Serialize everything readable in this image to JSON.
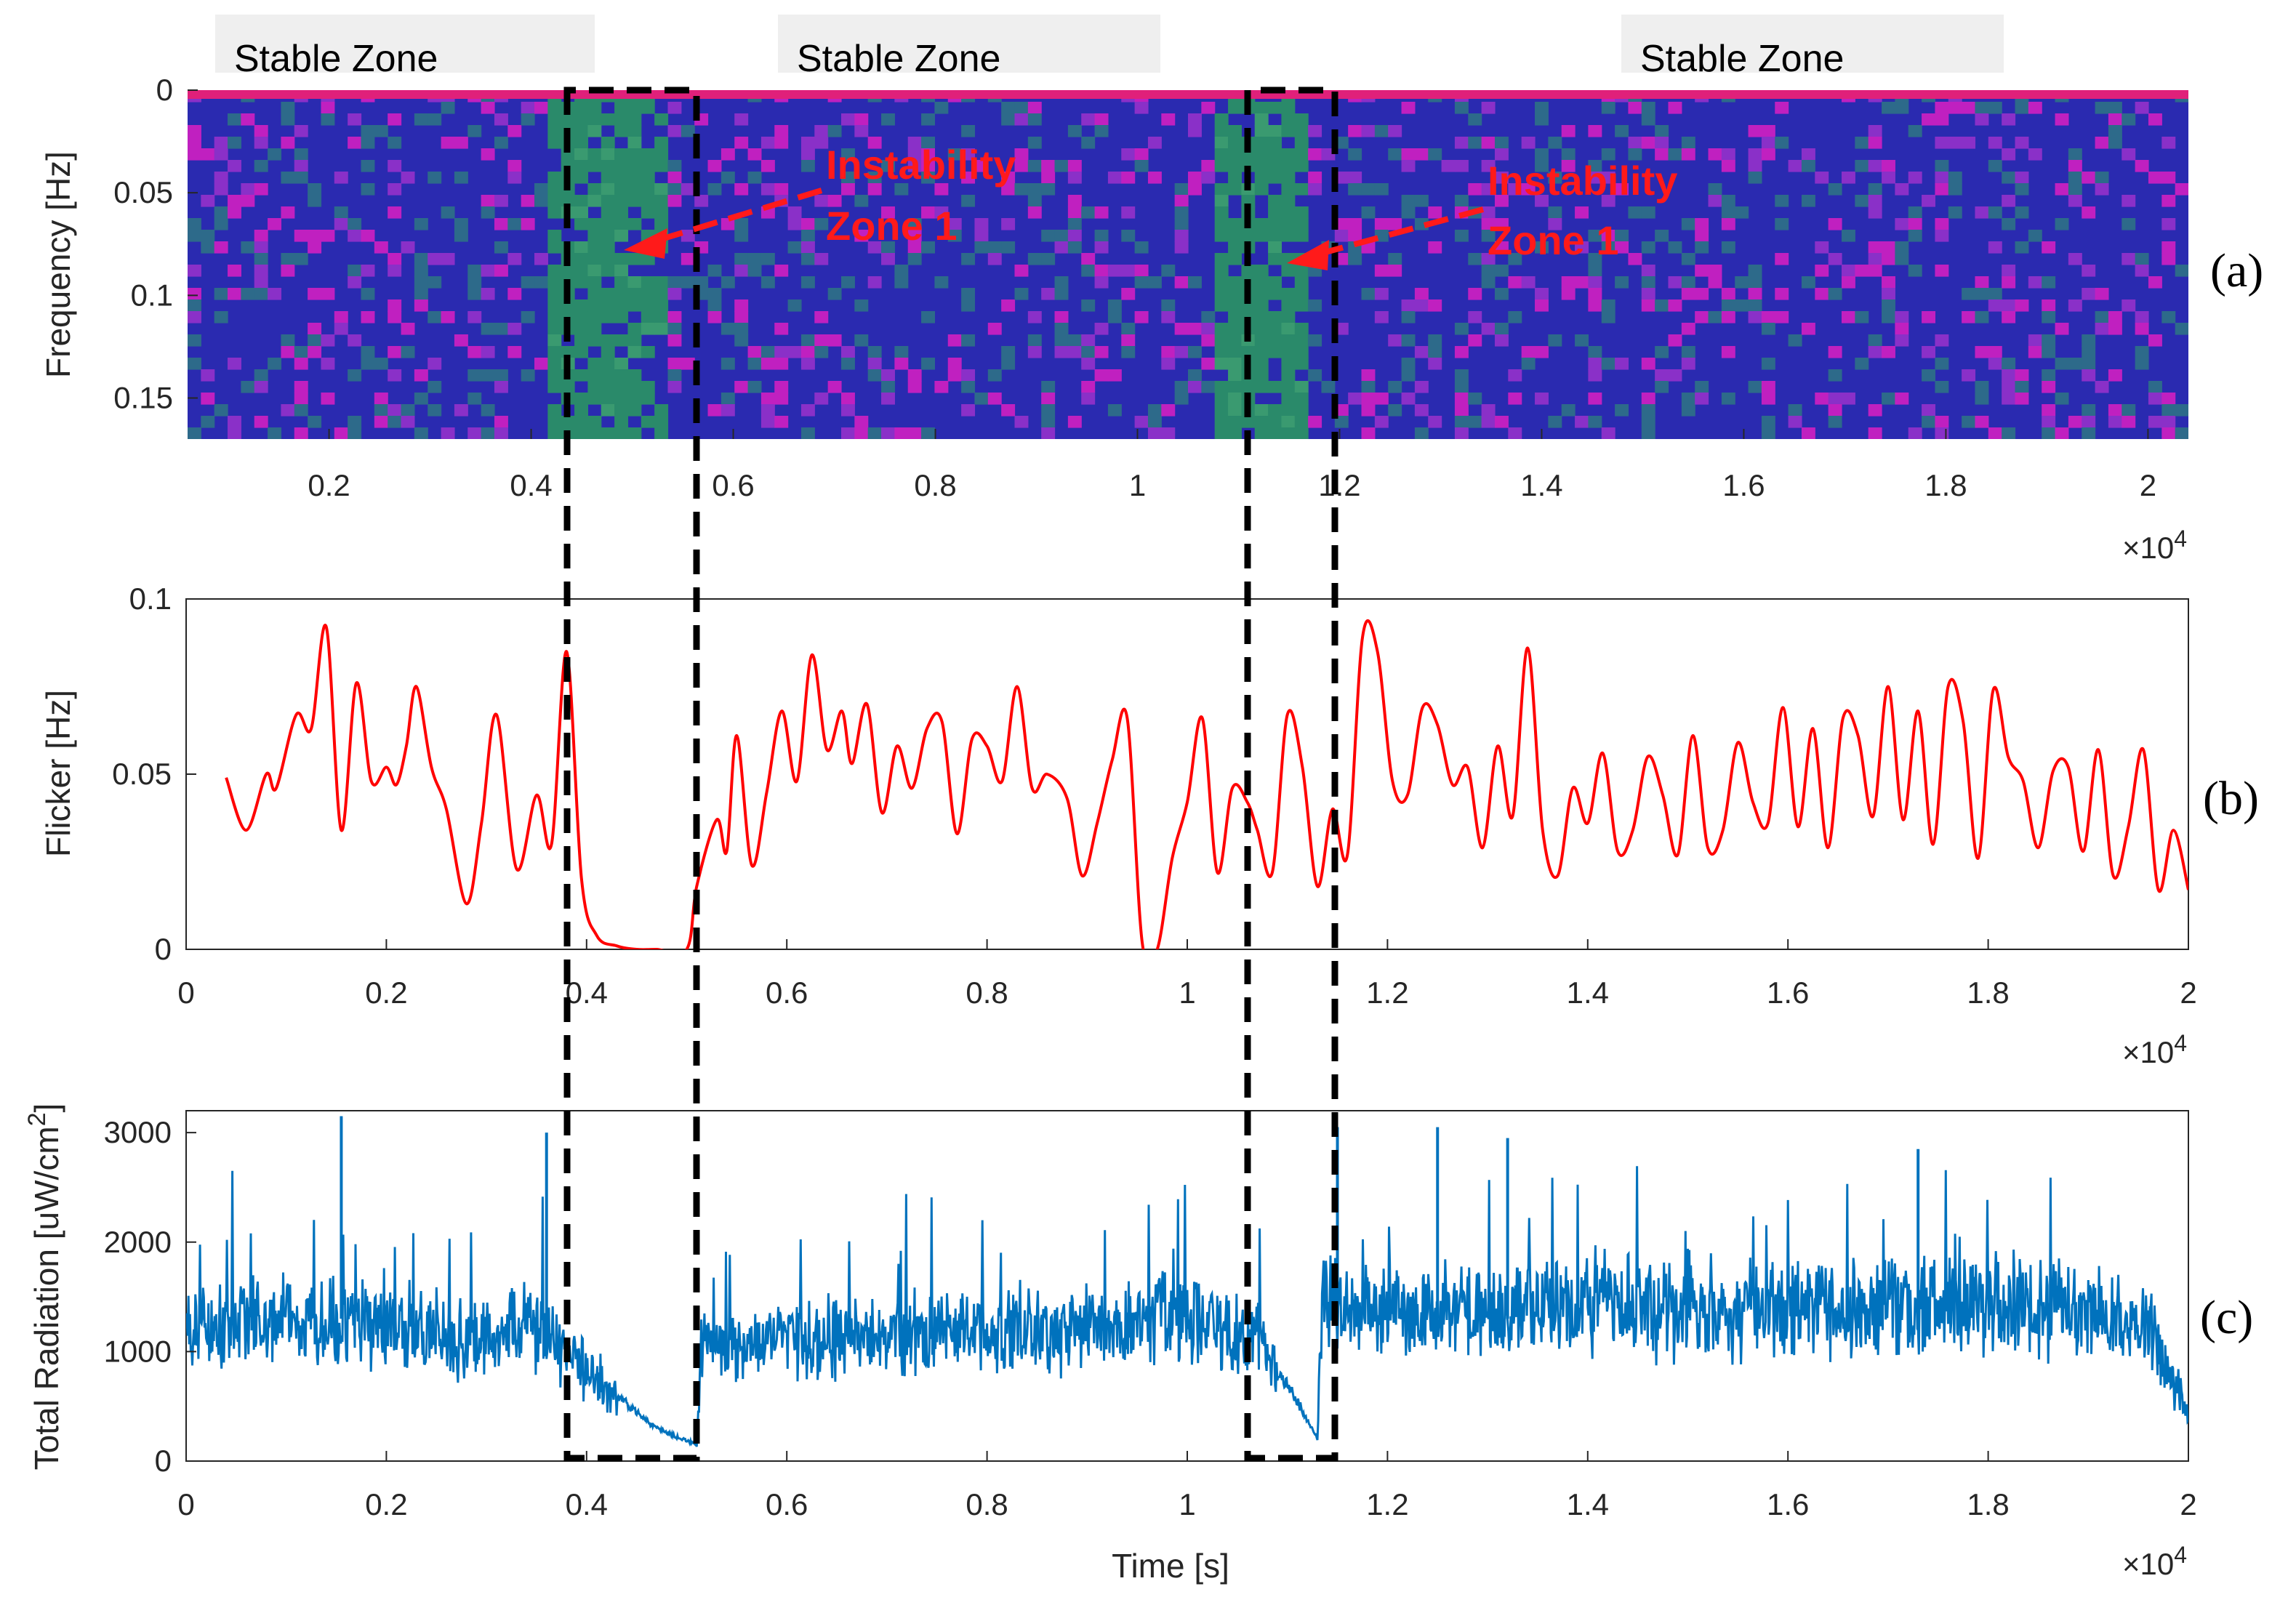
{
  "panel_labels": {
    "a": "(a)",
    "b": "(b)",
    "c": "(c)"
  },
  "zones": {
    "stable_label": "Stable Zone",
    "instability_label_line1": "Instability",
    "instability_label_line2": "Zone 1"
  },
  "colors": {
    "flicker_line": "#ff0000",
    "radiation_line": "#0072bd",
    "annotation": "#ff1a1a",
    "box": "#000000",
    "spectrogram_base": "#2a2ab0",
    "spectrogram_high": "#c020c0",
    "spectrogram_green": "#2a8a6a"
  },
  "chart_data": [
    {
      "type": "heatmap",
      "panel": "a",
      "title": "",
      "xlabel": "",
      "ylabel": "Frequency [Hz]",
      "xlim": [
        600,
        20400
      ],
      "ylim": [
        0,
        0.17
      ],
      "y_reversed": true,
      "x_ticks": [
        2000,
        4000,
        6000,
        8000,
        10000,
        12000,
        14000,
        16000,
        18000,
        20000
      ],
      "x_tick_labels": [
        "0.2",
        "0.4",
        "0.6",
        "0.8",
        "1",
        "1.2",
        "1.4",
        "1.6",
        "1.8",
        "2"
      ],
      "y_ticks": [
        0,
        0.05,
        0.1,
        0.15
      ],
      "y_tick_labels": [
        "0",
        "0.05",
        "0.1",
        "0.15"
      ],
      "x_multiplier": "×10",
      "x_multiplier_exp": "4",
      "description_values": {
        "low_band_hz": [
          0,
          0.005
        ],
        "low_band_intensity": "high"
      },
      "instability_bands_s": [
        [
          4100,
          5300
        ],
        [
          10800,
          11700
        ]
      ]
    },
    {
      "type": "line",
      "panel": "b",
      "title": "",
      "xlabel": "",
      "ylabel": "Flicker [Hz]",
      "xlim": [
        0,
        20000
      ],
      "ylim": [
        0,
        0.1
      ],
      "x_ticks": [
        0,
        2000,
        4000,
        6000,
        8000,
        10000,
        12000,
        14000,
        16000,
        18000,
        20000
      ],
      "x_tick_labels": [
        "0",
        "0.2",
        "0.4",
        "0.6",
        "0.8",
        "1",
        "1.2",
        "1.4",
        "1.6",
        "1.8",
        "2"
      ],
      "y_ticks": [
        0,
        0.05,
        0.1
      ],
      "y_tick_labels": [
        "0",
        "0.05",
        "0.1"
      ],
      "x_multiplier": "×10",
      "x_multiplier_exp": "4",
      "series": [
        {
          "name": "Flicker",
          "x": [
            400,
            600,
            800,
            900,
            1100,
            1250,
            1400,
            1550,
            1700,
            1850,
            2000,
            2100,
            2200,
            2300,
            2450,
            2600,
            2800,
            2950,
            3100,
            3300,
            3500,
            3650,
            3800,
            3950,
            4100,
            4300,
            4500,
            4700,
            5000,
            5100,
            5300,
            5400,
            5500,
            5650,
            5800,
            5950,
            6100,
            6250,
            6400,
            6550,
            6650,
            6800,
            6950,
            7100,
            7250,
            7400,
            7550,
            7700,
            7850,
            8000,
            8150,
            8300,
            8450,
            8600,
            8800,
            8950,
            9100,
            9250,
            9400,
            9550,
            9700,
            9850,
            10000,
            10150,
            10300,
            10450,
            10600,
            10700,
            10850,
            11000,
            11150,
            11300,
            11450,
            11600,
            11750,
            11900,
            12050,
            12200,
            12350,
            12500,
            12650,
            12800,
            12950,
            13100,
            13250,
            13400,
            13550,
            13700,
            13850,
            14000,
            14150,
            14300,
            14450,
            14600,
            14750,
            14900,
            15050,
            15200,
            15350,
            15500,
            15650,
            15800,
            15950,
            16100,
            16250,
            16400,
            16550,
            16700,
            16850,
            17000,
            17150,
            17300,
            17450,
            17600,
            17750,
            17900,
            18050,
            18200,
            18350,
            18500,
            18650,
            18800,
            18950,
            19100,
            19250,
            19400,
            19550,
            19700,
            19850,
            20000
          ],
          "y": [
            0.049,
            0.034,
            0.05,
            0.046,
            0.067,
            0.063,
            0.092,
            0.034,
            0.076,
            0.048,
            0.052,
            0.047,
            0.058,
            0.075,
            0.052,
            0.04,
            0.013,
            0.036,
            0.067,
            0.023,
            0.044,
            0.03,
            0.085,
            0.02,
            0.004,
            0.001,
            0.0,
            0.0,
            0.0,
            0.018,
            0.037,
            0.028,
            0.061,
            0.024,
            0.045,
            0.068,
            0.048,
            0.084,
            0.057,
            0.068,
            0.053,
            0.07,
            0.039,
            0.058,
            0.046,
            0.063,
            0.065,
            0.033,
            0.06,
            0.058,
            0.048,
            0.075,
            0.046,
            0.05,
            0.043,
            0.021,
            0.036,
            0.054,
            0.066,
            0.002,
            0.0,
            0.026,
            0.042,
            0.066,
            0.022,
            0.046,
            0.042,
            0.034,
            0.022,
            0.067,
            0.052,
            0.018,
            0.04,
            0.027,
            0.089,
            0.085,
            0.048,
            0.044,
            0.069,
            0.064,
            0.047,
            0.052,
            0.029,
            0.058,
            0.038,
            0.086,
            0.034,
            0.021,
            0.046,
            0.036,
            0.056,
            0.028,
            0.034,
            0.055,
            0.044,
            0.027,
            0.061,
            0.029,
            0.034,
            0.059,
            0.042,
            0.036,
            0.069,
            0.035,
            0.063,
            0.029,
            0.066,
            0.061,
            0.038,
            0.075,
            0.037,
            0.068,
            0.03,
            0.075,
            0.065,
            0.026,
            0.074,
            0.055,
            0.048,
            0.029,
            0.051,
            0.052,
            0.028,
            0.057,
            0.021,
            0.035,
            0.057,
            0.017,
            0.034,
            0.017
          ]
        }
      ]
    },
    {
      "type": "line",
      "panel": "c",
      "title": "",
      "xlabel": "Time [s]",
      "ylabel": "Total Radiation [uW/cm",
      "ylabel_exp": "2",
      "ylabel_end": "]",
      "xlim": [
        0,
        20000
      ],
      "ylim": [
        0,
        3200
      ],
      "x_ticks": [
        0,
        2000,
        4000,
        6000,
        8000,
        10000,
        12000,
        14000,
        16000,
        18000,
        20000
      ],
      "x_tick_labels": [
        "0",
        "0.2",
        "0.4",
        "0.6",
        "0.8",
        "1",
        "1.2",
        "1.4",
        "1.6",
        "1.8",
        "2"
      ],
      "y_ticks": [
        0,
        1000,
        2000,
        3000
      ],
      "y_tick_labels": [
        "0",
        "1000",
        "2000",
        "3000"
      ],
      "x_multiplier": "×10",
      "x_multiplier_exp": "4",
      "series": [
        {
          "name": "Total Radiation",
          "x": [
            0,
            1000,
            2000,
            2800,
            3500,
            3900,
            4300,
            4700,
            5100,
            5150,
            6000,
            8000,
            9000,
            10000,
            10700,
            11100,
            11300,
            11350,
            11500,
            12000,
            13000,
            14000,
            15000,
            16000,
            17000,
            18000,
            19000,
            19600,
            20000
          ],
          "y": [
            1200,
            1300,
            1250,
            1100,
            1250,
            900,
            600,
            300,
            150,
            1050,
            1100,
            1150,
            1200,
            1350,
            1100,
            550,
            200,
            1550,
            1400,
            1400,
            1350,
            1450,
            1350,
            1400,
            1350,
            1450,
            1350,
            1300,
            400
          ],
          "spikes": [
            {
              "x": 1550,
              "y": 3150
            },
            {
              "x": 3600,
              "y": 3000
            },
            {
              "x": 11500,
              "y": 3050
            },
            {
              "x": 12500,
              "y": 3050
            },
            {
              "x": 13200,
              "y": 2950
            },
            {
              "x": 17300,
              "y": 2850
            }
          ],
          "noise_amplitude": 500
        }
      ]
    }
  ]
}
